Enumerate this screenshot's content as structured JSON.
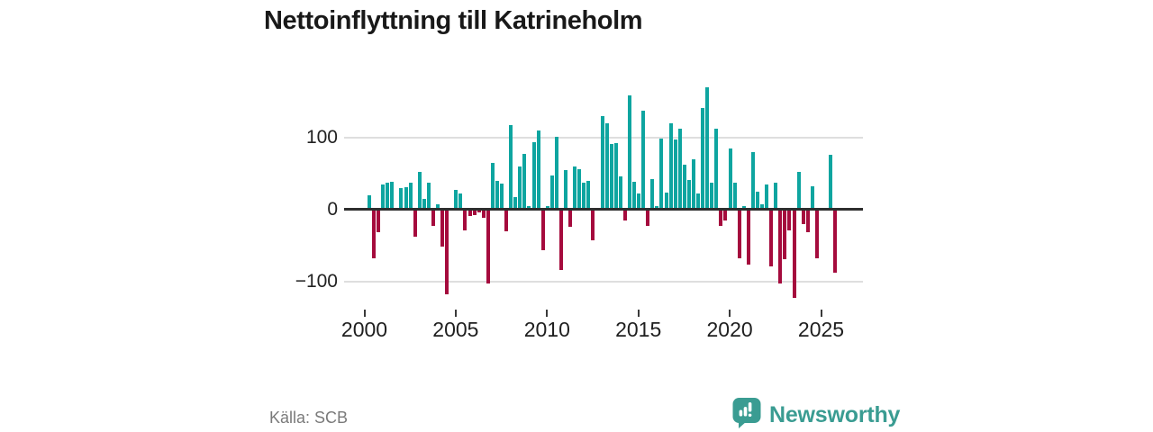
{
  "title": "Nettoinflyttning till Katrineholm",
  "source": "Källa: SCB",
  "logo": {
    "text": "Newsworthy"
  },
  "colors": {
    "bar_positive": "#0EA5A0",
    "bar_negative": "#A50B3D",
    "logo_teal": "#3A9C92",
    "zero_line": "#2e2e2e",
    "gridline": "#dedede"
  },
  "y_axis": {
    "labels": [
      "100",
      "0",
      "−100"
    ],
    "values": [
      100,
      0,
      -100
    ]
  },
  "x_axis": {
    "tick_years": [
      "2000",
      "2005",
      "2010",
      "2015",
      "2020",
      "2025"
    ]
  },
  "chart_data": {
    "type": "bar",
    "title": "Nettoinflyttning till Katrineholm",
    "xlabel": "",
    "ylabel": "",
    "yticks": [
      100,
      0,
      -100
    ],
    "ylim": [
      -130,
      175
    ],
    "frequency": "quarterly",
    "start": "2000-Q1",
    "end": "2025-Q3",
    "legend": "none",
    "grid": "horizontal",
    "series_name": "Nettoinflyttning per kvartal",
    "values_by_year": [
      {
        "year": 2000,
        "quarterly": [
          20,
          -67,
          -31,
          35
        ]
      },
      {
        "year": 2001,
        "quarterly": [
          38,
          39,
          2,
          30
        ]
      },
      {
        "year": 2002,
        "quarterly": [
          31,
          38,
          -37,
          53
        ]
      },
      {
        "year": 2003,
        "quarterly": [
          15,
          37,
          -23,
          8
        ]
      },
      {
        "year": 2004,
        "quarterly": [
          -51,
          -117,
          2,
          27
        ]
      },
      {
        "year": 2005,
        "quarterly": [
          22,
          -29,
          -9,
          -7
        ]
      },
      {
        "year": 2006,
        "quarterly": [
          -4,
          -11,
          -102,
          65
        ]
      },
      {
        "year": 2007,
        "quarterly": [
          40,
          36,
          -30,
          118
        ]
      },
      {
        "year": 2008,
        "quarterly": [
          18,
          60,
          78,
          5
        ]
      },
      {
        "year": 2009,
        "quarterly": [
          94,
          110,
          -56,
          5
        ]
      },
      {
        "year": 2010,
        "quarterly": [
          47,
          101,
          -84,
          55
        ]
      },
      {
        "year": 2011,
        "quarterly": [
          -24,
          60,
          56,
          37
        ]
      },
      {
        "year": 2012,
        "quarterly": [
          40,
          -43,
          2,
          130
        ]
      },
      {
        "year": 2013,
        "quarterly": [
          120,
          91,
          92,
          46
        ]
      },
      {
        "year": 2014,
        "quarterly": [
          -15,
          159,
          39,
          22
        ]
      },
      {
        "year": 2015,
        "quarterly": [
          137,
          -22,
          42,
          5
        ]
      },
      {
        "year": 2016,
        "quarterly": [
          99,
          24,
          120,
          97
        ]
      },
      {
        "year": 2017,
        "quarterly": [
          113,
          62,
          41,
          70
        ]
      },
      {
        "year": 2018,
        "quarterly": [
          23,
          141,
          170,
          38
        ]
      },
      {
        "year": 2019,
        "quarterly": [
          113,
          -22,
          -15,
          85
        ]
      },
      {
        "year": 2020,
        "quarterly": [
          38,
          -68,
          5,
          -76
        ]
      },
      {
        "year": 2021,
        "quarterly": [
          80,
          25,
          7,
          35
        ]
      },
      {
        "year": 2022,
        "quarterly": [
          -79,
          37,
          -103,
          -69
        ]
      },
      {
        "year": 2023,
        "quarterly": [
          -29,
          -123,
          52,
          -20
        ]
      },
      {
        "year": 2024,
        "quarterly": [
          -31,
          32,
          -67,
          2
        ]
      },
      {
        "year": 2025,
        "quarterly": [
          2,
          76,
          -87
        ]
      }
    ]
  }
}
